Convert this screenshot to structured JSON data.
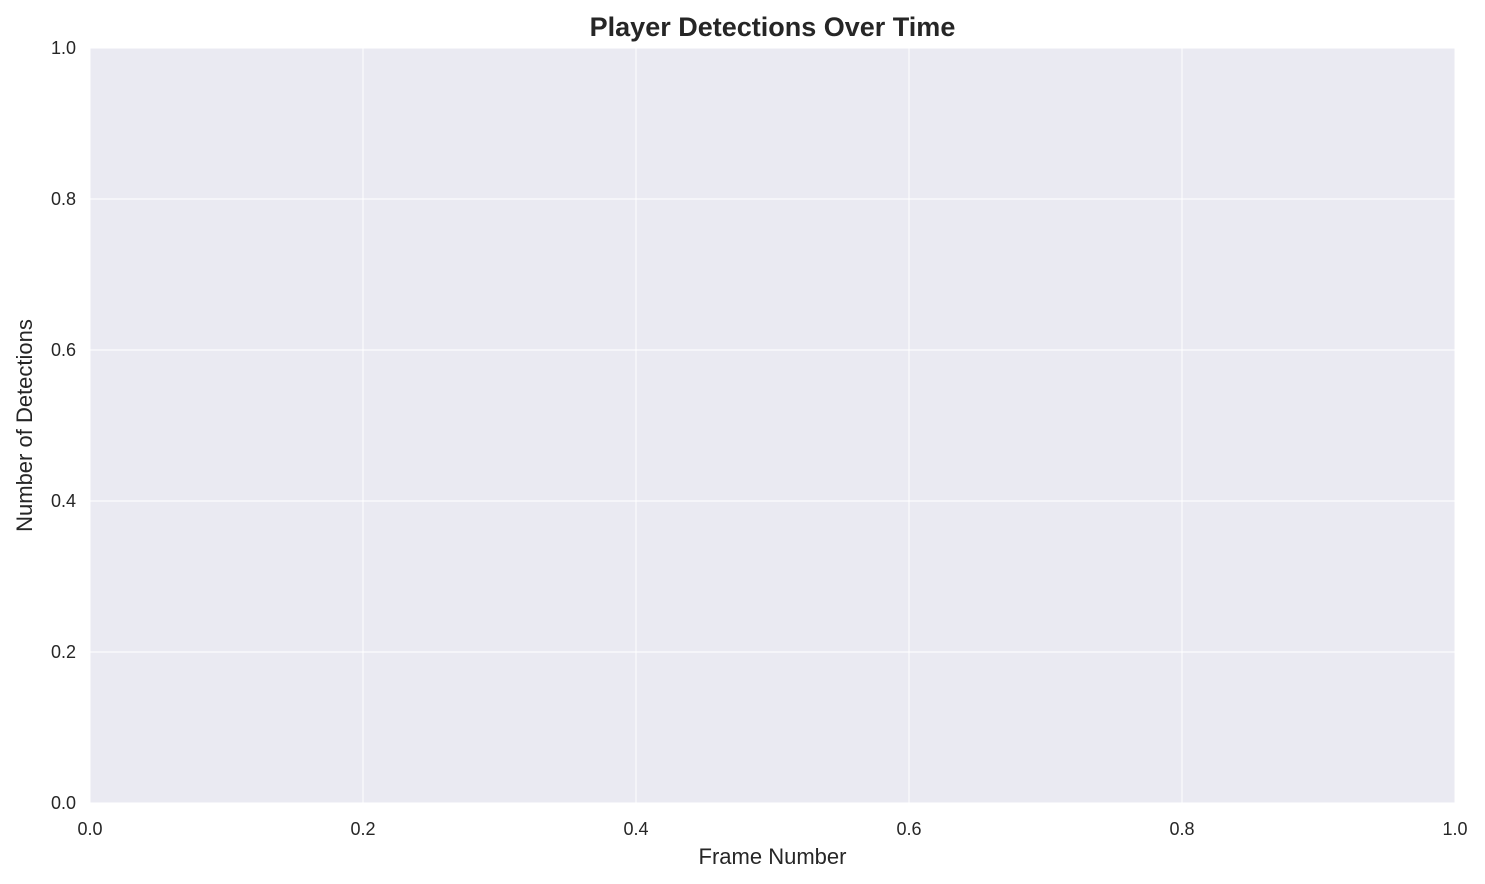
{
  "chart_data": {
    "type": "line",
    "title": "Player Detections Over Time",
    "xlabel": "Frame Number",
    "ylabel": "Number of Detections",
    "xlim": [
      0.0,
      1.0
    ],
    "ylim": [
      0.0,
      1.0
    ],
    "x_ticks": [
      "0.0",
      "0.2",
      "0.4",
      "0.6",
      "0.8",
      "1.0"
    ],
    "y_ticks": [
      "0.0",
      "0.2",
      "0.4",
      "0.6",
      "0.8",
      "1.0"
    ],
    "x_tick_values": [
      0.0,
      0.2,
      0.4,
      0.6,
      0.8,
      1.0
    ],
    "y_tick_values": [
      0.0,
      0.2,
      0.4,
      0.6,
      0.8,
      1.0
    ],
    "series": [],
    "grid": true,
    "legend": "none",
    "colors": {
      "plot_background": "#eaeaf2",
      "grid": "#ffffff",
      "text": "#262626"
    }
  }
}
